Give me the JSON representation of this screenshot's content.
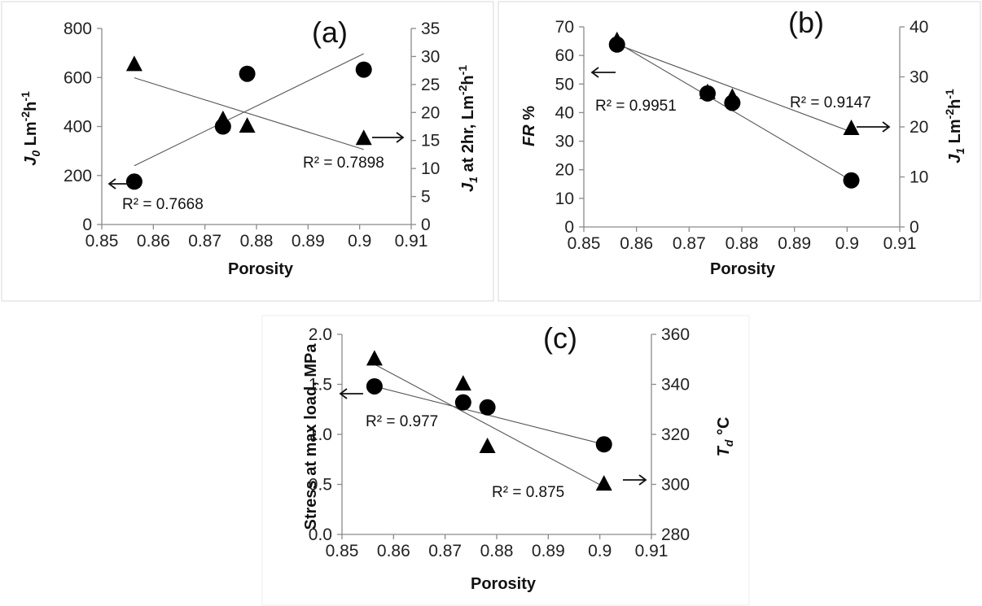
{
  "chart_data": [
    {
      "type": "scatter",
      "panel_label": "(a)",
      "xlabel": "Porosity",
      "ylabel_left": "J0 Lm-2h-1",
      "ylabel_right": "J1 at 2hr, Lm-2h-1",
      "xlim": [
        0.85,
        0.91
      ],
      "x_ticks": [
        "0.85",
        "0.86",
        "0.87",
        "0.88",
        "0.89",
        "0.9",
        "0.91"
      ],
      "ylim_left": [
        0,
        800
      ],
      "y_ticks_left": [
        "0",
        "200",
        "400",
        "600",
        "800"
      ],
      "ylim_right": [
        0,
        35
      ],
      "y_ticks_right": [
        "0",
        "5",
        "10",
        "15",
        "20",
        "25",
        "30",
        "35"
      ],
      "series": [
        {
          "marker": "circle",
          "axis": "left",
          "x": [
            0.8563,
            0.8735,
            0.8782,
            0.9008
          ],
          "y": [
            175,
            400,
            615,
            632
          ]
        },
        {
          "marker": "triangle",
          "axis": "right",
          "x": [
            0.8563,
            0.8735,
            0.8782,
            0.9008
          ],
          "y": [
            28.5,
            18.7,
            17.5,
            15.3
          ]
        }
      ],
      "trendlines": [
        {
          "axis": "left",
          "x": [
            0.8563,
            0.9008
          ],
          "y": [
            240,
            697
          ]
        },
        {
          "axis": "right",
          "x": [
            0.8563,
            0.9008
          ],
          "y": [
            26.2,
            13.4
          ]
        }
      ],
      "annotations": [
        "R² = 0.7668",
        "R² = 0.7898"
      ]
    },
    {
      "type": "scatter",
      "panel_label": "(b)",
      "xlabel": "Porosity",
      "ylabel_left": "FR %",
      "ylabel_right": "J1 Lm-2h-1",
      "xlim": [
        0.85,
        0.91
      ],
      "x_ticks": [
        "0.85",
        "0.86",
        "0.87",
        "0.88",
        "0.89",
        "0.9",
        "0.91"
      ],
      "ylim_left": [
        0,
        70
      ],
      "y_ticks_left": [
        "0",
        "10",
        "20",
        "30",
        "40",
        "50",
        "60",
        "70"
      ],
      "ylim_right": [
        0,
        40
      ],
      "y_ticks_right": [
        "0",
        "10",
        "20",
        "30",
        "40"
      ],
      "series": [
        {
          "marker": "circle",
          "axis": "left",
          "x": [
            0.8563,
            0.8735,
            0.8782,
            0.9008
          ],
          "y": [
            63.8,
            46.7,
            43.4,
            16.3
          ]
        },
        {
          "marker": "triangle",
          "axis": "right",
          "x": [
            0.8563,
            0.8735,
            0.8782,
            0.9008
          ],
          "y": [
            37.2,
            26.8,
            25.9,
            19.6
          ]
        }
      ],
      "trendlines": [
        {
          "axis": "left",
          "x": [
            0.8563,
            0.9008
          ],
          "y": [
            64.5,
            16.2
          ]
        },
        {
          "axis": "right",
          "x": [
            0.8563,
            0.9008
          ],
          "y": [
            36.5,
            19.0
          ]
        }
      ],
      "annotations": [
        "R² = 0.9951",
        "R² = 0.9147"
      ]
    },
    {
      "type": "scatter",
      "panel_label": "(c)",
      "xlabel": "Porosity",
      "ylabel_left": "Stress at max load, MPa",
      "ylabel_right": "Td °C",
      "xlim": [
        0.85,
        0.91
      ],
      "x_ticks": [
        "0.85",
        "0.86",
        "0.87",
        "0.88",
        "0.89",
        "0.9",
        "0.91"
      ],
      "ylim_left": [
        0,
        2
      ],
      "y_ticks_left": [
        "0.0",
        "0.5",
        "1.0",
        "1.5",
        "2.0"
      ],
      "ylim_right": [
        280,
        360
      ],
      "y_ticks_right": [
        "280",
        "300",
        "320",
        "340",
        "360"
      ],
      "series": [
        {
          "marker": "circle",
          "axis": "left",
          "x": [
            0.8563,
            0.8735,
            0.8782,
            0.9008
          ],
          "y": [
            1.48,
            1.32,
            1.27,
            0.9
          ]
        },
        {
          "marker": "triangle",
          "axis": "right",
          "x": [
            0.8563,
            0.8735,
            0.8782,
            0.9008
          ],
          "y": [
            350,
            340,
            315,
            300
          ]
        }
      ],
      "trendlines": [
        {
          "axis": "left",
          "x": [
            0.8563,
            0.9008
          ],
          "y": [
            1.48,
            0.9
          ]
        },
        {
          "axis": "right",
          "x": [
            0.8563,
            0.9008
          ],
          "y": [
            348,
            299
          ]
        }
      ],
      "annotations": [
        "R² = 0.977",
        "R² = 0.875"
      ]
    }
  ]
}
